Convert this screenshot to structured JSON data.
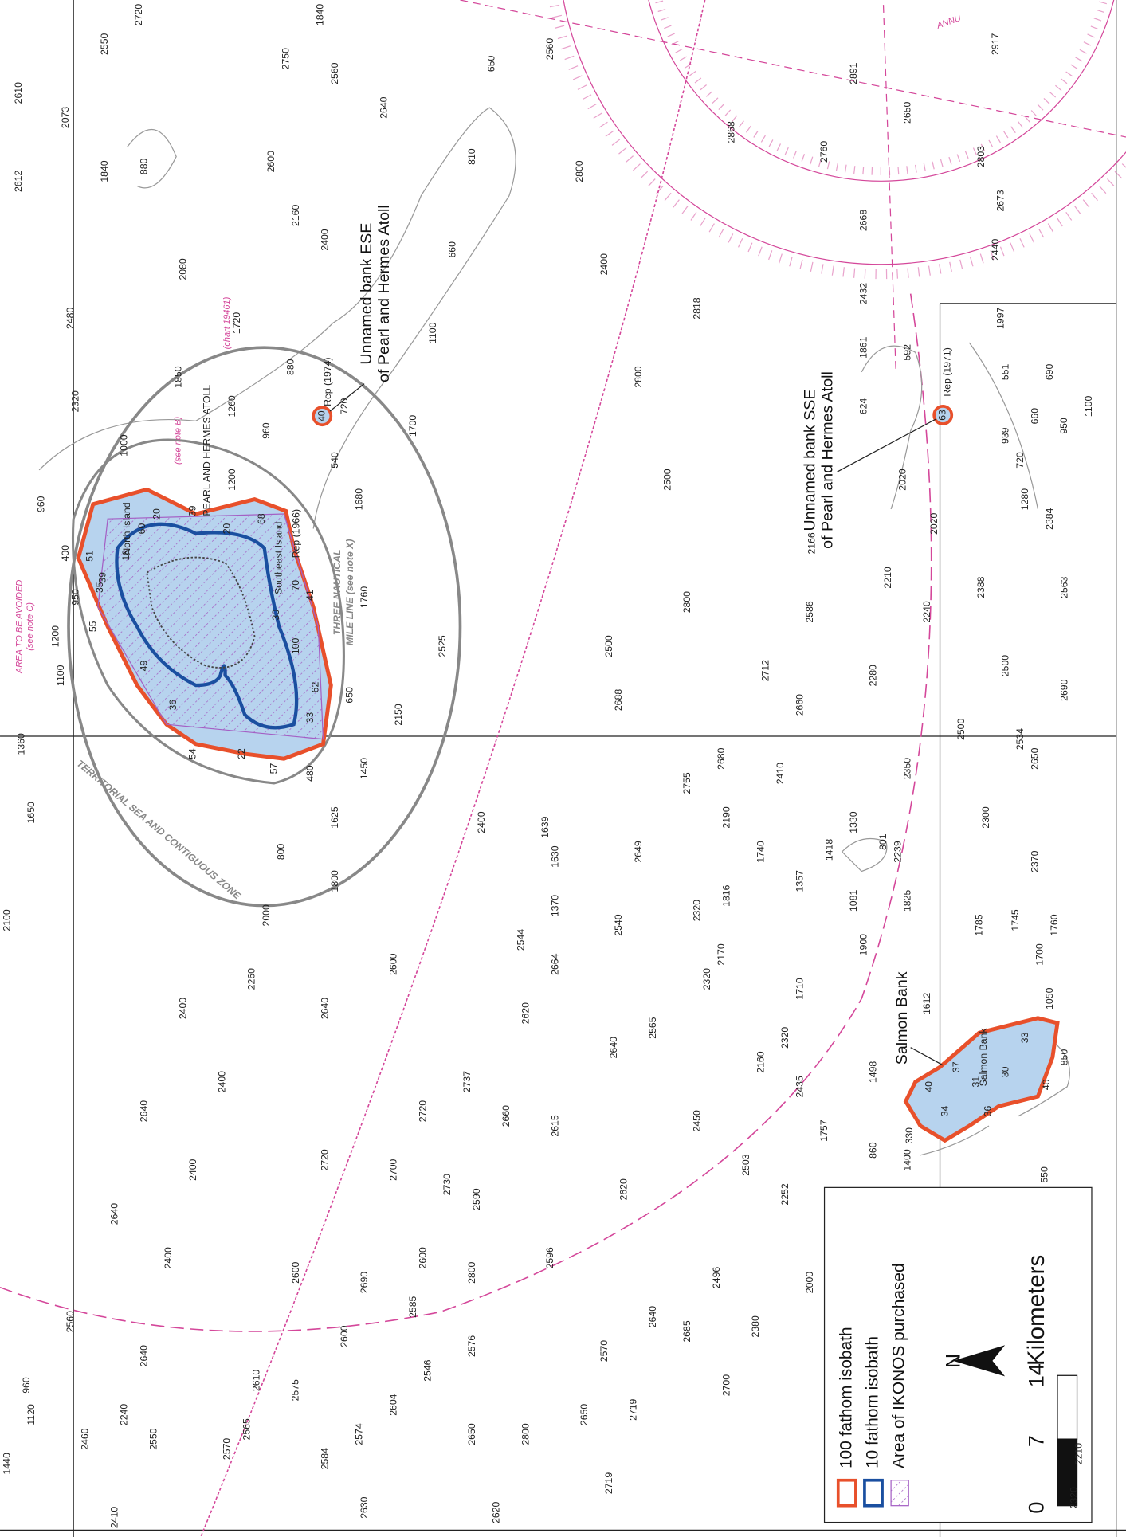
{
  "labels": {
    "bank_ese": [
      "Unnamed bank ESE",
      "of Pearl and Hermes Atoll"
    ],
    "bank_sse": [
      "Unnamed bank SSE",
      "of Pearl and Hermes Atoll"
    ],
    "salmon": "Salmon Bank",
    "salmon_small": "Salmon Bank",
    "atoll": "PEARL AND HERMES ATOLL",
    "north_island": "North Island",
    "southeast_island": "Southeast Island",
    "three_mile": [
      "THREE NAUTICAL",
      "MILE LINE (see note X)"
    ],
    "territorial": "TERRITORIAL SEA AND CONTIGUOUS ZONE",
    "avoid": [
      "AREA TO BE AVOIDED",
      "(see note C)"
    ],
    "note_b": "(see note B)",
    "chart": "(chart 19461)",
    "rep_1974": "Rep (1974)",
    "rep_1971": "Rep (1971)",
    "rep_1966": "Rep (1966)",
    "annu": "ANNU",
    "bank_ese_depth": "40",
    "bank_sse_depth": "63"
  },
  "legend": {
    "items": [
      "100 fathom isobath",
      "10 fathom isobath",
      "Area of IKONOS purchased"
    ],
    "north": "N",
    "scale": [
      "0",
      "7",
      "14",
      "Kilometers"
    ]
  },
  "soundings": [
    "2610",
    "2073",
    "2612",
    "2550",
    "2720",
    "1840",
    "880",
    "2480",
    "2080",
    "2320",
    "1000",
    "960",
    "400",
    "950",
    "1200",
    "1100",
    "1360",
    "1650",
    "2100",
    "2750",
    "2560",
    "1840",
    "2600",
    "2640",
    "2160",
    "2400",
    "810",
    "650",
    "660",
    "1100",
    "1720",
    "1850",
    "1260",
    "960",
    "1200",
    "880",
    "720",
    "540",
    "1700",
    "1680",
    "1760",
    "2525",
    "650",
    "2150",
    "1450",
    "480",
    "1625",
    "800",
    "1800",
    "2000",
    "2560",
    "2800",
    "2400",
    "2800",
    "2500",
    "2800",
    "2500",
    "2688",
    "2712",
    "2660",
    "2818",
    "2891",
    "2868",
    "2760",
    "2650",
    "2917",
    "2803",
    "2673",
    "2668",
    "2440",
    "2432",
    "1997",
    "1861",
    "592",
    "551",
    "690",
    "624",
    "660",
    "939",
    "950",
    "1100",
    "720",
    "2020",
    "1280",
    "2166",
    "2210",
    "2020",
    "2384",
    "2388",
    "2563",
    "2586",
    "2240",
    "2280",
    "2500",
    "2690",
    "2500",
    "2534",
    "2350",
    "2410",
    "2680",
    "2755",
    "2190",
    "1740",
    "2650",
    "2300",
    "2370",
    "1330",
    "1418",
    "1357",
    "801",
    "2239",
    "1081",
    "1825",
    "1785",
    "1745",
    "1760",
    "1900",
    "1700",
    "1050",
    "1612",
    "1710",
    "2320",
    "1498",
    "2435",
    "1757",
    "860",
    "1400",
    "330",
    "850",
    "550",
    "2400",
    "1639",
    "1630",
    "1370",
    "2544",
    "2664",
    "2649",
    "2540",
    "2320",
    "1816",
    "2170",
    "2320",
    "2600",
    "2640",
    "2260",
    "2400",
    "2620",
    "2640",
    "2565",
    "2160",
    "2450",
    "2660",
    "2615",
    "2720",
    "2737",
    "2720",
    "2700",
    "2730",
    "2590",
    "2620",
    "2503",
    "2252",
    "2000",
    "2496",
    "2380",
    "2685",
    "2640",
    "2570",
    "2596",
    "2800",
    "2600",
    "2585",
    "2576",
    "2546",
    "2600",
    "2690",
    "2600",
    "2400",
    "2640",
    "2400",
    "2640",
    "2400",
    "2560",
    "2640",
    "2610",
    "2575",
    "2565",
    "2574",
    "2604",
    "2584",
    "2630",
    "2650",
    "2800",
    "2650",
    "2719",
    "2700",
    "2719",
    "2620",
    "2460",
    "2240",
    "2550",
    "2570",
    "1120",
    "960",
    "1440",
    "2410",
    "2210",
    "2320"
  ],
  "atoll_soundings": [
    "60",
    "20",
    "39",
    "18",
    "51",
    "39",
    "35",
    "55",
    "49",
    "36",
    "54",
    "22",
    "57",
    "68",
    "20",
    "70",
    "41",
    "30",
    "100",
    "62",
    "33"
  ],
  "salmon_soundings": [
    "40",
    "37",
    "31",
    "30",
    "33",
    "40",
    "36",
    "34"
  ]
}
